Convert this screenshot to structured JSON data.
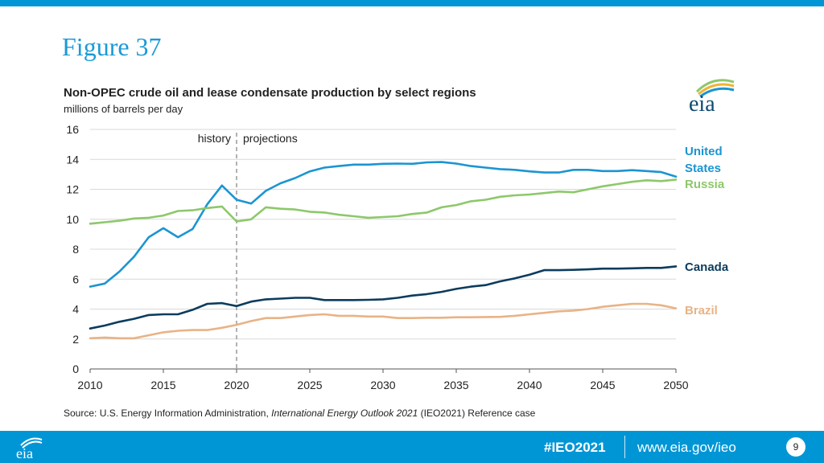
{
  "header": {
    "figure_title": "Figure 37"
  },
  "chart_data": {
    "type": "line",
    "title": "Non-OPEC crude oil and lease condensate production by select regions",
    "subtitle": "millions of barrels per day",
    "xlabel": "",
    "ylabel": "",
    "xlim": [
      2010,
      2050
    ],
    "ylim": [
      0,
      16
    ],
    "x_ticks": [
      "2010",
      "2015",
      "2020",
      "2025",
      "2030",
      "2035",
      "2040",
      "2045",
      "2050"
    ],
    "y_ticks": [
      "0",
      "2",
      "4",
      "6",
      "8",
      "10",
      "12",
      "14",
      "16"
    ],
    "divider_year": 2020,
    "history_label": "history",
    "projections_label": "projections",
    "x": [
      2010,
      2011,
      2012,
      2013,
      2014,
      2015,
      2016,
      2017,
      2018,
      2019,
      2020,
      2021,
      2022,
      2023,
      2024,
      2025,
      2026,
      2027,
      2028,
      2029,
      2030,
      2031,
      2032,
      2033,
      2034,
      2035,
      2036,
      2037,
      2038,
      2039,
      2040,
      2041,
      2042,
      2043,
      2044,
      2045,
      2046,
      2047,
      2048,
      2049,
      2050
    ],
    "series": [
      {
        "name": "United States",
        "label_lines": [
          "United",
          "States"
        ],
        "color": "#1b95d1",
        "values": [
          5.5,
          5.7,
          6.5,
          7.5,
          8.8,
          9.4,
          8.8,
          9.35,
          11.0,
          12.25,
          11.3,
          11.05,
          11.9,
          12.4,
          12.75,
          13.2,
          13.45,
          13.55,
          13.65,
          13.65,
          13.7,
          13.72,
          13.7,
          13.8,
          13.82,
          13.72,
          13.55,
          13.45,
          13.35,
          13.3,
          13.2,
          13.12,
          13.12,
          13.3,
          13.3,
          13.22,
          13.22,
          13.28,
          13.22,
          13.15,
          12.85
        ]
      },
      {
        "name": "Russia",
        "label_lines": [
          "Russia"
        ],
        "color": "#8dc86b",
        "values": [
          9.7,
          9.8,
          9.9,
          10.05,
          10.1,
          10.25,
          10.55,
          10.6,
          10.75,
          10.85,
          9.85,
          10.0,
          10.8,
          10.7,
          10.65,
          10.5,
          10.45,
          10.3,
          10.2,
          10.1,
          10.15,
          10.2,
          10.35,
          10.45,
          10.8,
          10.95,
          11.2,
          11.3,
          11.5,
          11.6,
          11.65,
          11.75,
          11.85,
          11.8,
          12.0,
          12.2,
          12.35,
          12.5,
          12.6,
          12.55,
          12.65
        ]
      },
      {
        "name": "Canada",
        "label_lines": [
          "Canada"
        ],
        "color": "#0b3c5d",
        "values": [
          2.7,
          2.9,
          3.15,
          3.35,
          3.6,
          3.65,
          3.65,
          3.95,
          4.35,
          4.4,
          4.2,
          4.5,
          4.65,
          4.7,
          4.75,
          4.75,
          4.6,
          4.6,
          4.6,
          4.62,
          4.65,
          4.75,
          4.9,
          5.0,
          5.15,
          5.35,
          5.5,
          5.6,
          5.85,
          6.05,
          6.3,
          6.6,
          6.6,
          6.62,
          6.65,
          6.7,
          6.7,
          6.72,
          6.75,
          6.75,
          6.85
        ]
      },
      {
        "name": "Brazil",
        "label_lines": [
          "Brazil"
        ],
        "color": "#e8b386",
        "values": [
          2.05,
          2.1,
          2.05,
          2.05,
          2.25,
          2.45,
          2.55,
          2.6,
          2.6,
          2.75,
          2.95,
          3.2,
          3.4,
          3.4,
          3.5,
          3.6,
          3.65,
          3.55,
          3.55,
          3.5,
          3.5,
          3.4,
          3.4,
          3.42,
          3.42,
          3.45,
          3.45,
          3.47,
          3.48,
          3.55,
          3.65,
          3.75,
          3.85,
          3.9,
          4.0,
          4.15,
          4.25,
          4.35,
          4.35,
          4.25,
          4.05
        ]
      }
    ]
  },
  "source": {
    "prefix": "Source:  U.S. Energy Information Administration,",
    "italic": "International Energy Outlook 2021",
    "suffix": "(IEO2021) Reference case"
  },
  "footer": {
    "hashtag": "#IEO2021",
    "url": "www.eia.gov/ieo",
    "page_number": "9"
  },
  "colors": {
    "accent": "#0096d6"
  }
}
